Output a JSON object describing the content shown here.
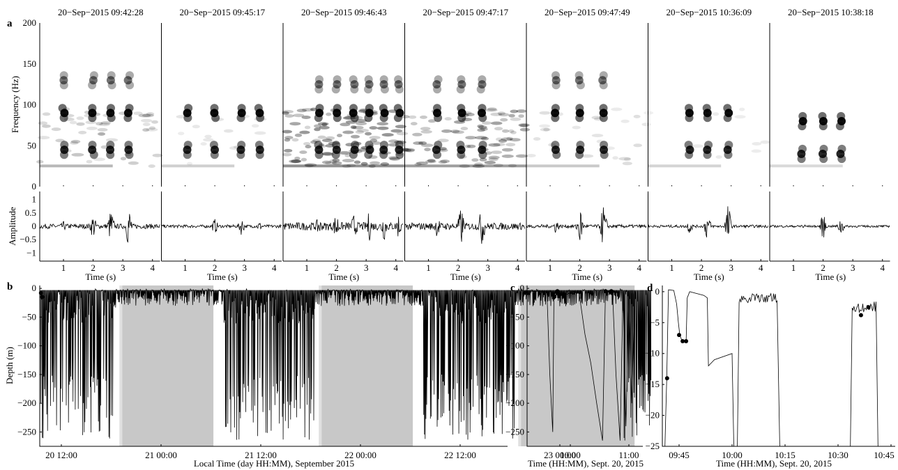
{
  "panel_letters": {
    "a": "a",
    "b": "b",
    "c": "c",
    "d": "d"
  },
  "chart_data": [
    {
      "type": "heatmap",
      "panel": "a",
      "titles": [
        "20−Sep−2015 09:42:28",
        "20−Sep−2015 09:45:17",
        "20−Sep−2015 09:46:43",
        "20−Sep−2015 09:47:17",
        "20−Sep−2015 09:47:49",
        "20−Sep−2015 10:36:09",
        "20−Sep−2015 10:38:18"
      ],
      "ylabel": "Frequency (Hz)",
      "yticks": [
        "0",
        "50",
        "100",
        "150",
        "200"
      ],
      "ylim": [
        0,
        200
      ],
      "xlim": [
        0.2,
        4.3
      ],
      "calls": [
        {
          "pulses": [
            1.0,
            2.0,
            2.6,
            3.2
          ],
          "freqs": [
            45,
            90,
            130
          ],
          "noise": 0.25,
          "low": 25
        },
        {
          "pulses": [
            1.1,
            2.0,
            2.9,
            3.5
          ],
          "freqs": [
            45,
            90
          ],
          "noise": 0.08,
          "low": 25
        },
        {
          "pulses": [
            1.4,
            2.0,
            2.6,
            3.1,
            3.6,
            4.1
          ],
          "freqs": [
            45,
            90,
            125
          ],
          "noise": 0.55,
          "low": 25
        },
        {
          "pulses": [
            1.3,
            2.1,
            2.8
          ],
          "freqs": [
            45,
            90,
            125
          ],
          "noise": 0.45,
          "low": 25
        },
        {
          "pulses": [
            1.2,
            2.0,
            2.8
          ],
          "freqs": [
            45,
            90,
            130
          ],
          "noise": 0.12,
          "low": 25
        },
        {
          "pulses": [
            1.6,
            2.2,
            2.9
          ],
          "freqs": [
            45,
            90
          ],
          "noise": 0.05,
          "low": 25
        },
        {
          "pulses": [
            1.3,
            2.0,
            2.6
          ],
          "freqs": [
            40,
            80
          ],
          "noise": 0.0,
          "low": 25
        }
      ]
    },
    {
      "type": "line",
      "panel": "a-waveform",
      "ylabel": "Amplitude",
      "xlabel": "Time (s)",
      "yticks": [
        "−1",
        "−0.5",
        "0",
        "0.5",
        "1"
      ],
      "ylim": [
        -1.3,
        1.3
      ],
      "xticks": [
        "1",
        "2",
        "3",
        "4"
      ],
      "pulse_amps": [
        [
          0.2,
          0.5,
          0.7,
          0.9
        ],
        [
          0.05,
          0.3,
          0.35,
          0.2
        ],
        [
          0.4,
          0.6,
          0.55,
          0.6,
          0.6,
          0.55
        ],
        [
          0.45,
          0.8,
          0.8
        ],
        [
          0.3,
          0.8,
          0.9
        ],
        [
          0.3,
          0.6,
          0.9
        ],
        [
          0.15,
          0.5,
          0.4
        ]
      ]
    },
    {
      "type": "line",
      "panel": "b",
      "xlabel": "Local Time (day HH:MM), September 2015",
      "ylabel": "Depth (m)",
      "xticks": [
        "20 12:00",
        "21 00:00",
        "21 12:00",
        "22 00:00",
        "22 12:00",
        "23 00:00"
      ],
      "yticks": [
        "−250",
        "−200",
        "−150",
        "−100",
        "−50",
        "0"
      ],
      "ylim": [
        -275,
        5
      ],
      "night_shading": true
    },
    {
      "type": "line",
      "panel": "c",
      "xlabel": "Time (HH:MM), Sept. 20, 2015",
      "ylabel": "",
      "xticks": [
        "10:00",
        "11:00"
      ],
      "yticks": [
        "−250",
        "−200",
        "−150",
        "−100",
        "−50",
        "0"
      ],
      "ylim": [
        -275,
        5
      ],
      "markers": [
        [
          9.72,
          -15
        ],
        [
          9.78,
          -5
        ],
        [
          9.8,
          -10
        ],
        [
          10.6,
          -5
        ],
        [
          10.7,
          -5
        ]
      ]
    },
    {
      "type": "line",
      "panel": "d",
      "xlabel": "Time (HH:MM), Sept. 20, 2015",
      "ylabel": "",
      "xticks": [
        "09:45",
        "10:00",
        "10:15",
        "10:30",
        "10:45"
      ],
      "yticks": [
        "−25",
        "−20",
        "−15",
        "−10",
        "−5",
        "0"
      ],
      "ylim": [
        -25,
        1
      ],
      "markers": [
        [
          "09:42",
          -14
        ],
        [
          "09:45",
          -7
        ],
        [
          "09:46",
          -8
        ],
        [
          "09:47",
          -8
        ],
        [
          "10:36",
          -3.8
        ],
        [
          "10:38",
          -2.5
        ]
      ]
    }
  ]
}
